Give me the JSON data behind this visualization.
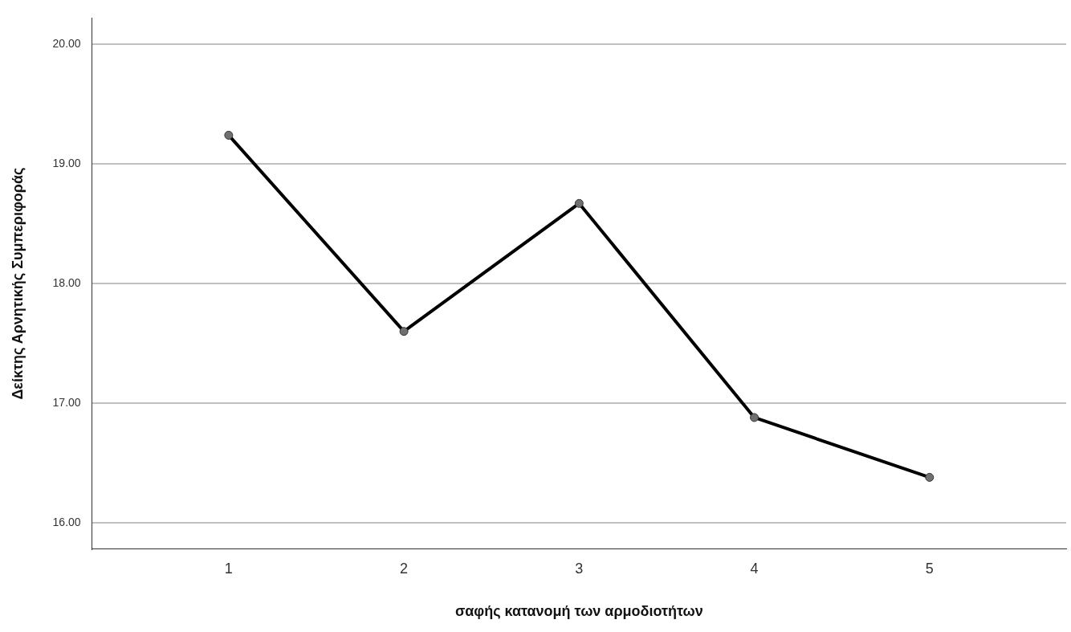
{
  "chart_data": {
    "type": "line",
    "xlabel": "σαφής κατανομή των αρμοδιοτήτων",
    "ylabel": "Δείκτης Αρνητικής Συμπεριφοράς",
    "x": [
      1,
      2,
      3,
      4,
      5
    ],
    "series": [
      {
        "color": "#000000",
        "values": [
          19.24,
          17.6,
          18.67,
          16.88,
          16.38
        ]
      }
    ],
    "xlim": [
      0.22,
      5.78
    ],
    "xticks": [
      1,
      2,
      3,
      4,
      5
    ],
    "ylim": [
      15.78,
      20.22
    ],
    "yticks": [
      {
        "value": 16,
        "label": "16.00"
      },
      {
        "value": 17,
        "label": "17.00"
      },
      {
        "value": 18,
        "label": "18.00"
      },
      {
        "value": 19,
        "label": "19.00"
      },
      {
        "value": 20,
        "label": "20.00"
      }
    ],
    "grid": "y",
    "marker": "circle",
    "line_style": "solid",
    "legend": false
  }
}
